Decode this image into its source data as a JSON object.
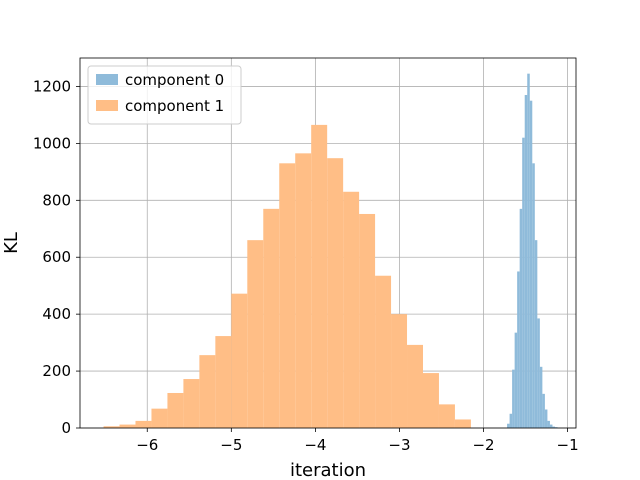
{
  "chart_data": {
    "type": "bar",
    "title": "",
    "xlabel": "iteration",
    "ylabel": "KL",
    "xlim": [
      -6.8,
      -0.9
    ],
    "ylim": [
      0,
      1300
    ],
    "xticks": [
      -6,
      -5,
      -4,
      -3,
      -2,
      -1
    ],
    "xtick_labels": [
      "−6",
      "−5",
      "−4",
      "−3",
      "−2",
      "−1"
    ],
    "yticks": [
      0,
      200,
      400,
      600,
      800,
      1000,
      1200
    ],
    "ytick_labels": [
      "0",
      "200",
      "400",
      "600",
      "800",
      "1000",
      "1200"
    ],
    "grid": true,
    "legend_position": "top-left",
    "series": [
      {
        "name": "component 1",
        "color": "#ffbe86",
        "bin_edges": [
          -6.52,
          -6.33,
          -6.14,
          -5.95,
          -5.76,
          -5.57,
          -5.38,
          -5.19,
          -5.0,
          -4.81,
          -4.62,
          -4.43,
          -4.24,
          -4.05,
          -3.86,
          -3.67,
          -3.48,
          -3.29,
          -3.1,
          -2.91,
          -2.72,
          -2.53,
          -2.34,
          -2.15
        ],
        "values": [
          6,
          12,
          25,
          68,
          123,
          172,
          256,
          323,
          472,
          660,
          770,
          930,
          965,
          1065,
          948,
          830,
          752,
          535,
          400,
          292,
          193,
          83,
          30
        ]
      },
      {
        "name": "component 0",
        "color": "#8fbbda",
        "bin_edges": [
          -1.72,
          -1.69,
          -1.66,
          -1.63,
          -1.6,
          -1.57,
          -1.54,
          -1.51,
          -1.48,
          -1.45,
          -1.42,
          -1.39,
          -1.36,
          -1.33,
          -1.3,
          -1.27,
          -1.24,
          -1.21,
          -1.18,
          -1.15,
          -1.12
        ],
        "values": [
          15,
          50,
          205,
          335,
          550,
          770,
          1020,
          1170,
          1245,
          1150,
          930,
          660,
          385,
          215,
          120,
          65,
          25,
          12,
          5,
          3
        ]
      }
    ]
  }
}
